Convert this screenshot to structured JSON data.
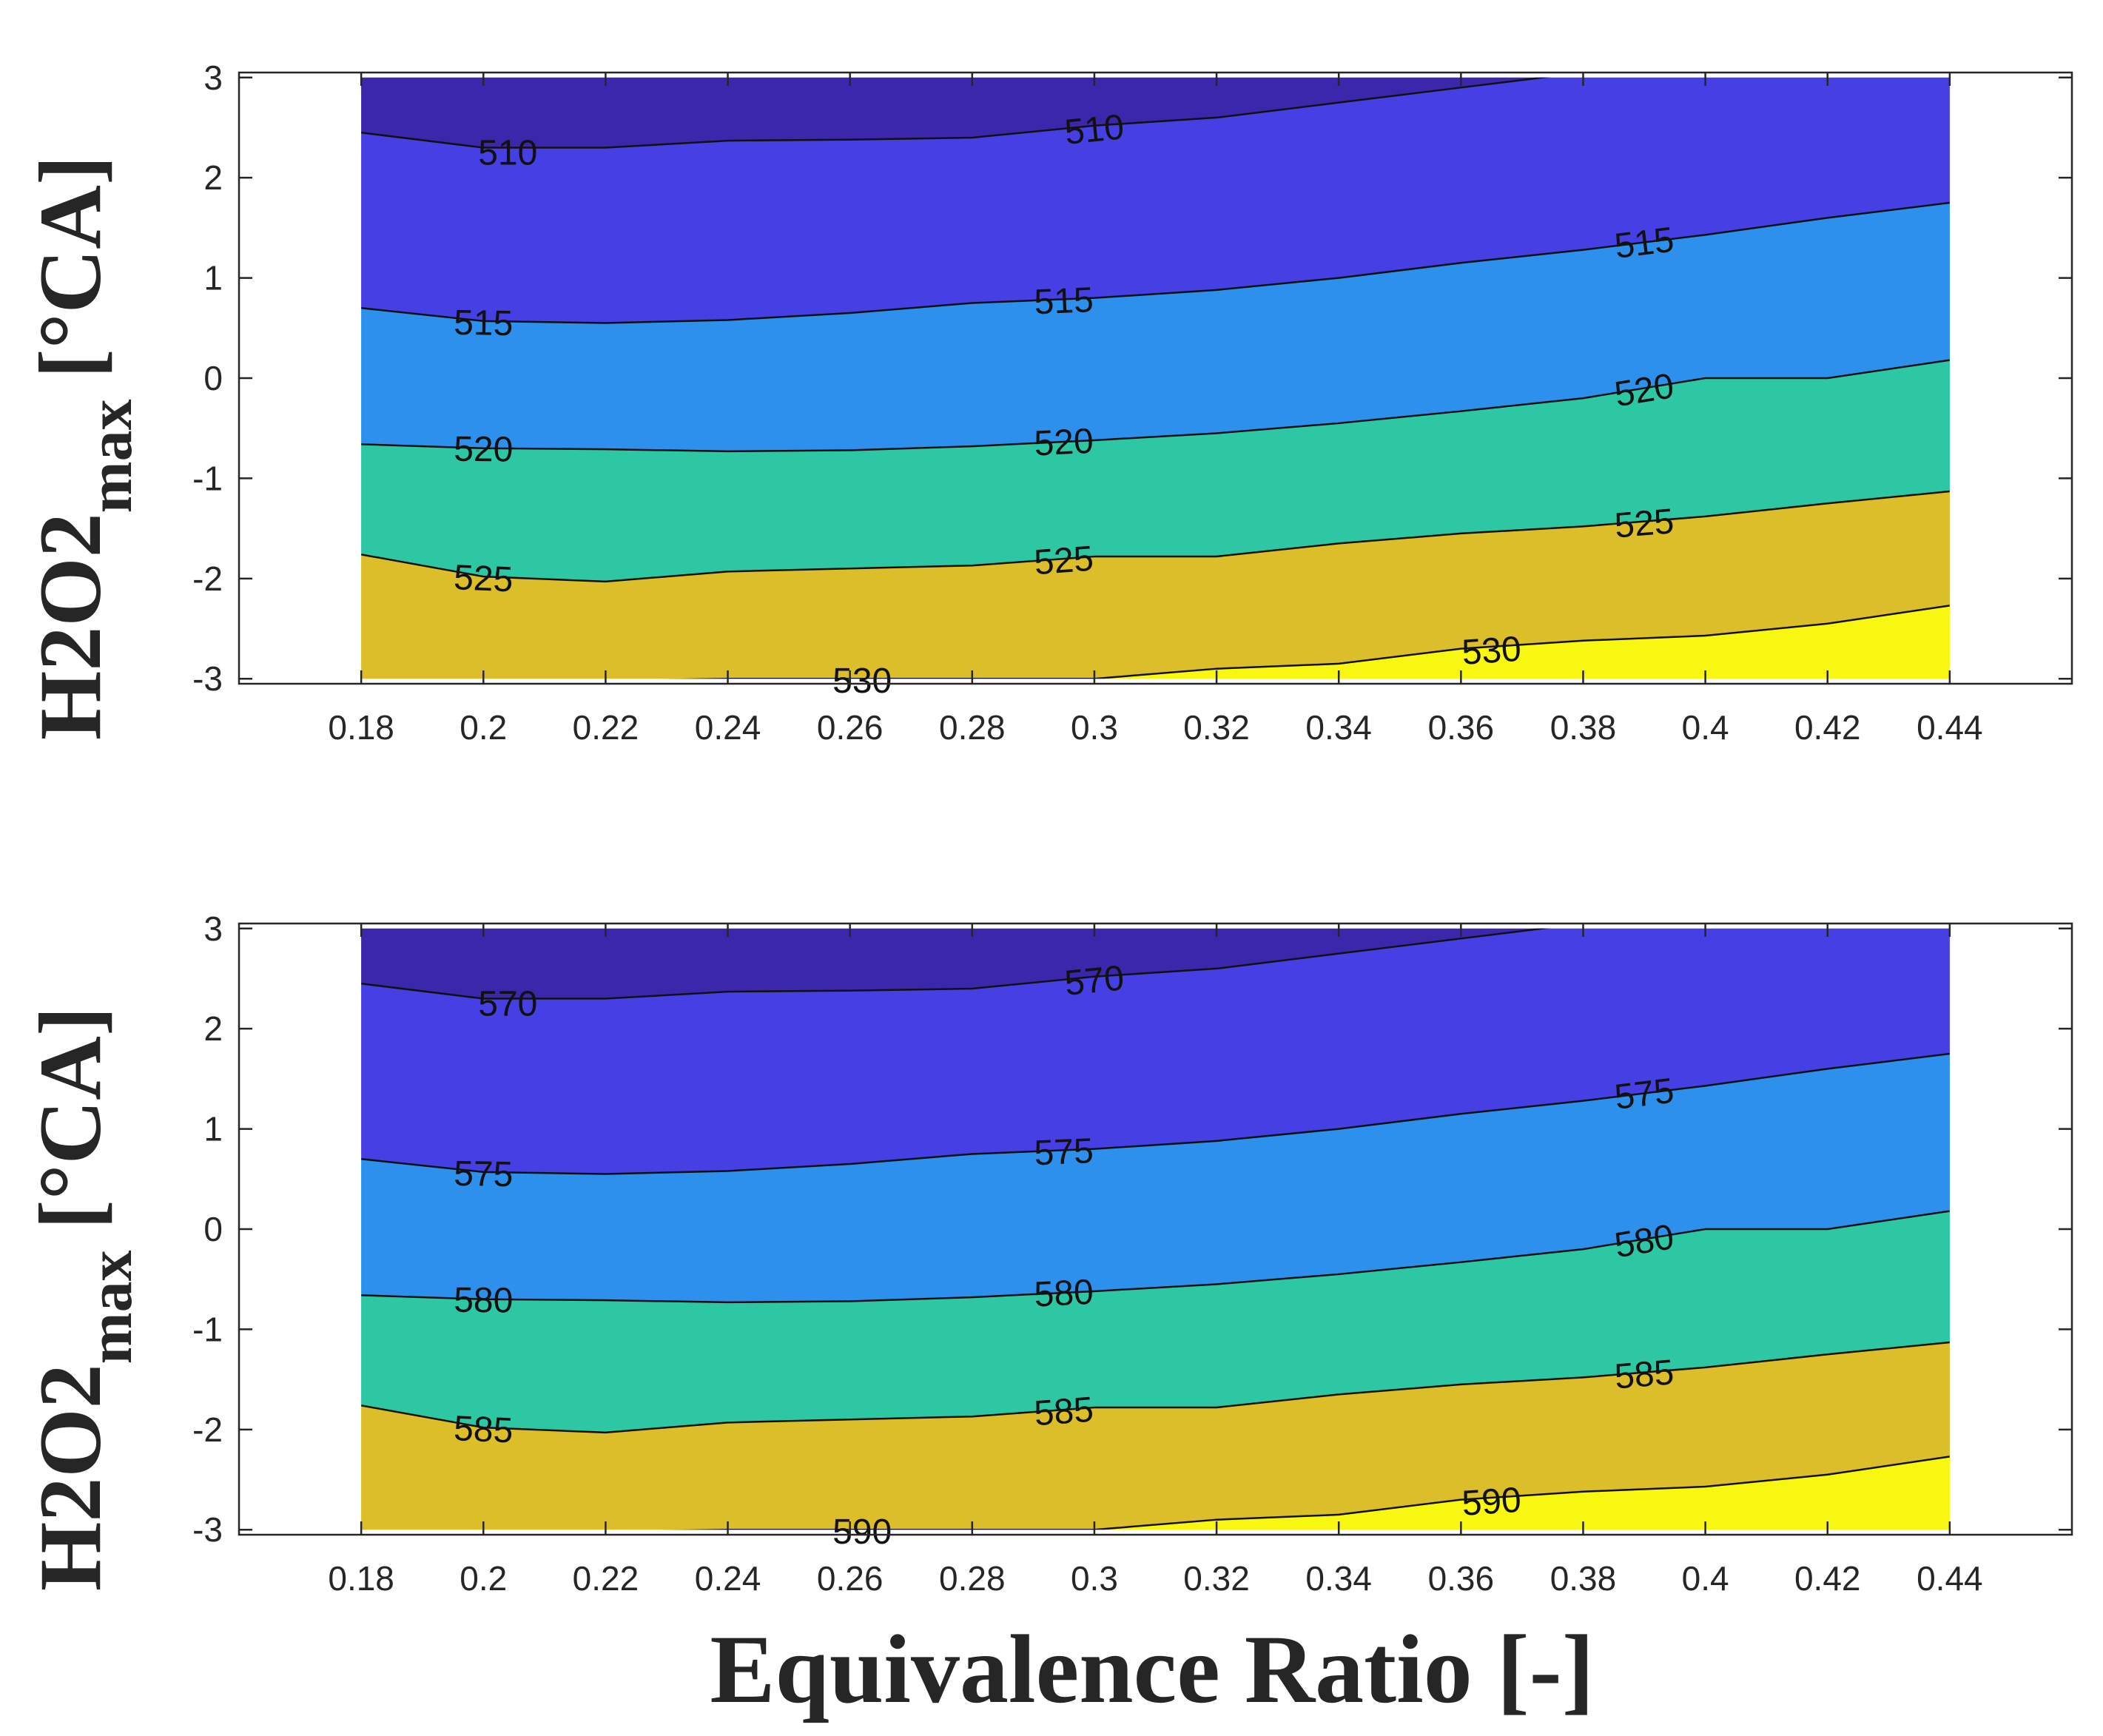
{
  "chart_data": [
    {
      "type": "contour",
      "xlabel": "",
      "ylabel_main": "H2O2",
      "ylabel_sub": "max",
      "ylabel_unit": "[°CA]",
      "xlim": [
        0.16,
        0.46
      ],
      "ylim": [
        -3.05,
        3.05
      ],
      "x_ticks": [
        "0.18",
        "0.2",
        "0.22",
        "0.24",
        "0.26",
        "0.28",
        "0.3",
        "0.32",
        "0.34",
        "0.36",
        "0.38",
        "0.4",
        "0.42",
        "0.44"
      ],
      "y_ticks": [
        "3",
        "2",
        "1",
        "0",
        "-1",
        "-2",
        "-3"
      ],
      "data_extent": {
        "x": [
          0.18,
          0.44
        ],
        "y": [
          -3,
          3
        ]
      },
      "x_nodes": [
        0.18,
        0.2,
        0.22,
        0.24,
        0.26,
        0.28,
        0.3,
        0.32,
        0.34,
        0.36,
        0.38,
        0.4,
        0.42,
        0.44
      ],
      "fill_colors": [
        "#3b27ab",
        "#4640e4",
        "#2d90ec",
        "#2ec7a3",
        "#dcbd2a",
        "#f8f712"
      ],
      "levels": [
        {
          "value": 510,
          "label": "510",
          "y": [
            2.45,
            2.3,
            2.3,
            2.37,
            2.38,
            2.4,
            2.52,
            2.6,
            2.75,
            2.9,
            3.05,
            3.2,
            3.35,
            3.5
          ],
          "label_pos": [
            {
              "x": 0.204,
              "y": 2.25
            },
            {
              "x": 0.3,
              "y": 2.48
            }
          ]
        },
        {
          "value": 515,
          "label": "515",
          "y": [
            0.7,
            0.57,
            0.55,
            0.58,
            0.65,
            0.75,
            0.8,
            0.88,
            1.0,
            1.15,
            1.28,
            1.43,
            1.6,
            1.75
          ],
          "label_pos": [
            {
              "x": 0.2,
              "y": 0.55
            },
            {
              "x": 0.295,
              "y": 0.77
            },
            {
              "x": 0.39,
              "y": 1.35
            }
          ]
        },
        {
          "value": 520,
          "label": "520",
          "y": [
            -0.66,
            -0.7,
            -0.71,
            -0.73,
            -0.72,
            -0.68,
            -0.62,
            -0.55,
            -0.45,
            -0.33,
            -0.2,
            0.0,
            0.0,
            0.18
          ],
          "label_pos": [
            {
              "x": 0.2,
              "y": -0.71
            },
            {
              "x": 0.295,
              "y": -0.64
            },
            {
              "x": 0.39,
              "y": -0.12
            }
          ]
        },
        {
          "value": 525,
          "label": "525",
          "y": [
            -1.76,
            -1.98,
            -2.03,
            -1.93,
            -1.9,
            -1.87,
            -1.78,
            -1.78,
            -1.65,
            -1.55,
            -1.48,
            -1.38,
            -1.25,
            -1.13
          ],
          "label_pos": [
            {
              "x": 0.2,
              "y": -2.0
            },
            {
              "x": 0.295,
              "y": -1.82
            },
            {
              "x": 0.39,
              "y": -1.45
            }
          ]
        },
        {
          "value": 530,
          "label": "530",
          "y": [
            -3.2,
            -3.1,
            -3.02,
            -3.0,
            -3.0,
            -3.0,
            -3.0,
            -2.9,
            -2.85,
            -2.7,
            -2.62,
            -2.57,
            -2.45,
            -2.27
          ],
          "label_pos": [
            {
              "x": 0.262,
              "y": -3.02
            },
            {
              "x": 0.365,
              "y": -2.72
            }
          ]
        }
      ]
    },
    {
      "type": "contour",
      "xlabel": "Equivalence Ratio [-]",
      "ylabel_main": "H2O2",
      "ylabel_sub": "max",
      "ylabel_unit": "[°CA]",
      "xlim": [
        0.16,
        0.46
      ],
      "ylim": [
        -3.05,
        3.05
      ],
      "x_ticks": [
        "0.18",
        "0.2",
        "0.22",
        "0.24",
        "0.26",
        "0.28",
        "0.3",
        "0.32",
        "0.34",
        "0.36",
        "0.38",
        "0.4",
        "0.42",
        "0.44"
      ],
      "y_ticks": [
        "3",
        "2",
        "1",
        "0",
        "-1",
        "-2",
        "-3"
      ],
      "data_extent": {
        "x": [
          0.18,
          0.44
        ],
        "y": [
          -3,
          3
        ]
      },
      "x_nodes": [
        0.18,
        0.2,
        0.22,
        0.24,
        0.26,
        0.28,
        0.3,
        0.32,
        0.34,
        0.36,
        0.38,
        0.4,
        0.42,
        0.44
      ],
      "fill_colors": [
        "#3b27ab",
        "#4640e4",
        "#2d90ec",
        "#2ec7a3",
        "#dcbd2a",
        "#f8f712"
      ],
      "levels": [
        {
          "value": 570,
          "label": "570",
          "y": [
            2.45,
            2.3,
            2.3,
            2.37,
            2.38,
            2.4,
            2.52,
            2.6,
            2.75,
            2.9,
            3.05,
            3.2,
            3.35,
            3.5
          ],
          "label_pos": [
            {
              "x": 0.204,
              "y": 2.25
            },
            {
              "x": 0.3,
              "y": 2.48
            }
          ]
        },
        {
          "value": 575,
          "label": "575",
          "y": [
            0.7,
            0.57,
            0.55,
            0.58,
            0.65,
            0.75,
            0.8,
            0.88,
            1.0,
            1.15,
            1.28,
            1.43,
            1.6,
            1.75
          ],
          "label_pos": [
            {
              "x": 0.2,
              "y": 0.55
            },
            {
              "x": 0.295,
              "y": 0.77
            },
            {
              "x": 0.39,
              "y": 1.35
            }
          ]
        },
        {
          "value": 580,
          "label": "580",
          "y": [
            -0.66,
            -0.7,
            -0.71,
            -0.73,
            -0.72,
            -0.68,
            -0.62,
            -0.55,
            -0.45,
            -0.33,
            -0.2,
            0.0,
            0.0,
            0.18
          ],
          "label_pos": [
            {
              "x": 0.2,
              "y": -0.71
            },
            {
              "x": 0.295,
              "y": -0.64
            },
            {
              "x": 0.39,
              "y": -0.12
            }
          ]
        },
        {
          "value": 585,
          "label": "585",
          "y": [
            -1.76,
            -1.98,
            -2.03,
            -1.93,
            -1.9,
            -1.87,
            -1.78,
            -1.78,
            -1.65,
            -1.55,
            -1.48,
            -1.38,
            -1.25,
            -1.13
          ],
          "label_pos": [
            {
              "x": 0.2,
              "y": -2.0
            },
            {
              "x": 0.295,
              "y": -1.82
            },
            {
              "x": 0.39,
              "y": -1.45
            }
          ]
        },
        {
          "value": 590,
          "label": "590",
          "y": [
            -3.2,
            -3.1,
            -3.02,
            -3.0,
            -3.0,
            -3.0,
            -3.0,
            -2.9,
            -2.85,
            -2.7,
            -2.62,
            -2.57,
            -2.45,
            -2.27
          ],
          "label_pos": [
            {
              "x": 0.262,
              "y": -3.02
            },
            {
              "x": 0.365,
              "y": -2.72
            }
          ]
        }
      ]
    }
  ],
  "figure": {
    "xlabel": "Equivalence Ratio [-]"
  }
}
